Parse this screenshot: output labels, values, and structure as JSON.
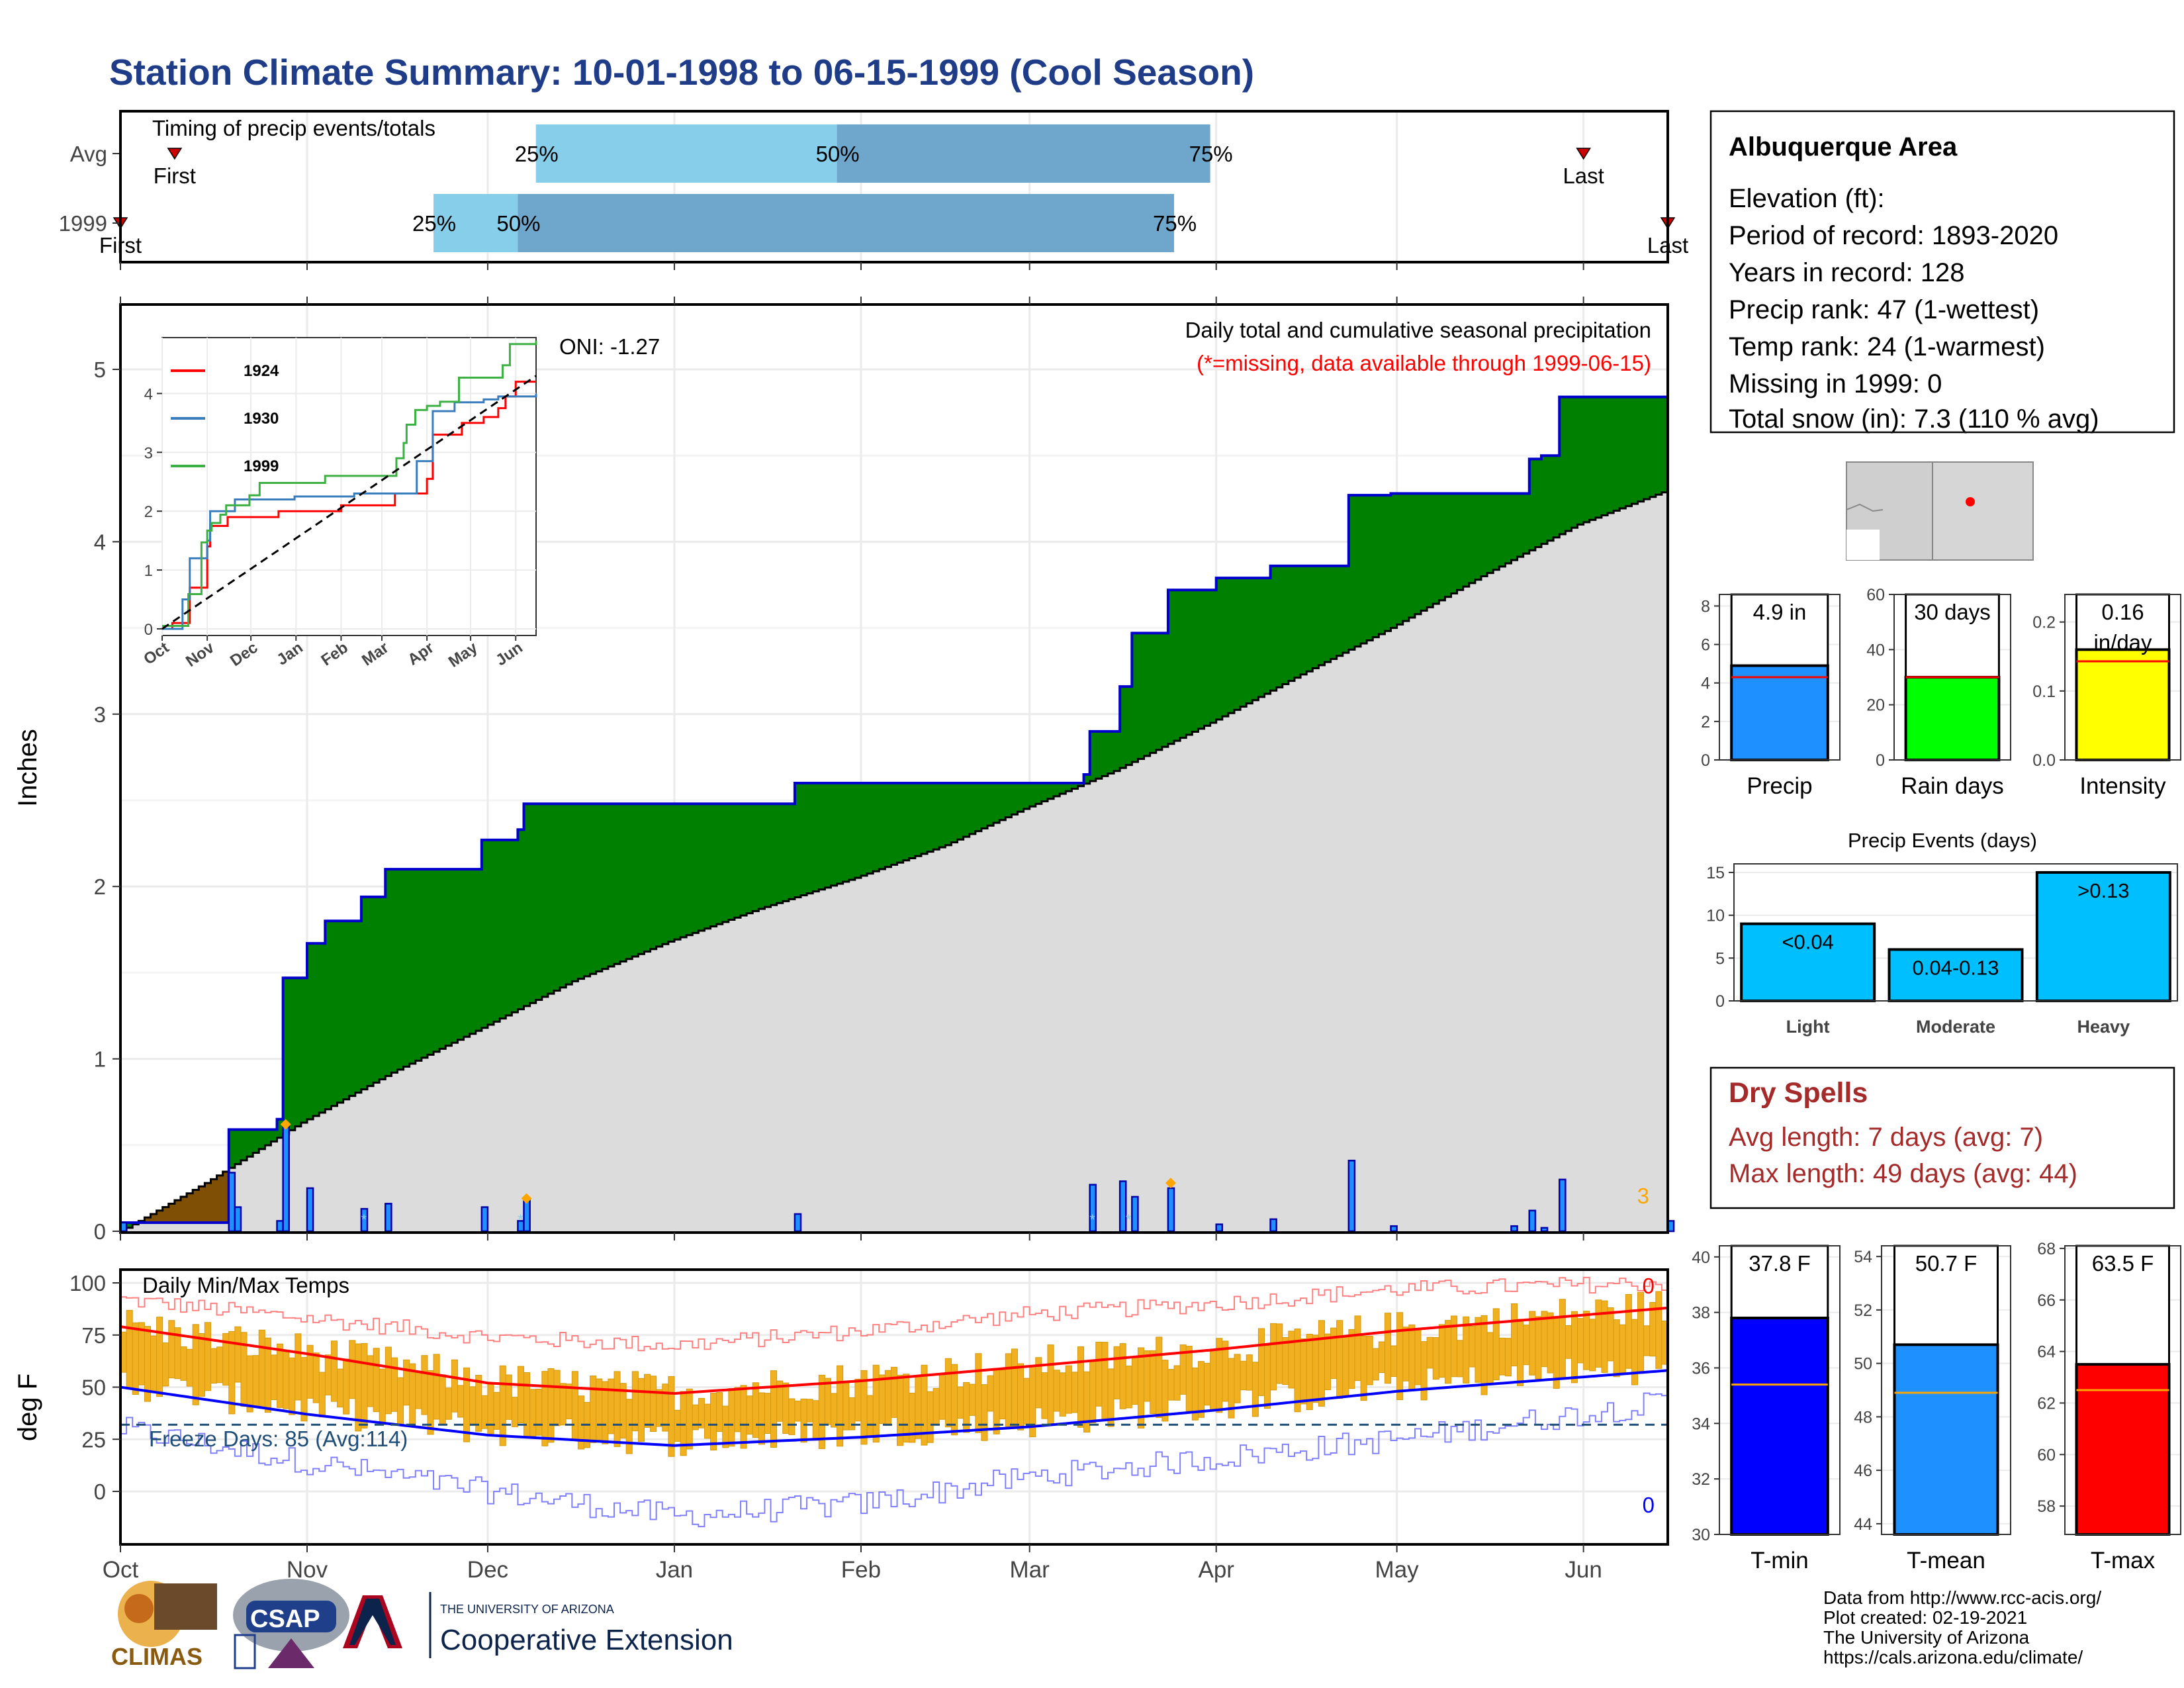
{
  "title": "Station Climate Summary: 10-01-1998 to 06-15-1999 (Cool Season)",
  "colors": {
    "title": "#1f3c88",
    "q1": "#87ceeb",
    "q2": "#6fa6cc",
    "green": "#008000",
    "brown": "#7f4f05",
    "gray_fill": "#dcdcdc",
    "blue_line": "#0000cc",
    "precip_bar": "#1e90ff",
    "rain_bar": "#00ff00",
    "intensity_bar": "#ffff00",
    "event_bar": "#00bfff",
    "dry_red": "#a52a2a",
    "tmin": "#0000ff",
    "tmean": "#1e90ff",
    "tmax": "#ff0000",
    "avg_line": "#ff0000",
    "temp_bar": "#f0b020"
  },
  "timing": {
    "title": "Timing of precip events/totals",
    "rows": [
      {
        "label": "Avg",
        "first": "First",
        "last": "Last",
        "p25": "25%",
        "p50": "50%",
        "p75": "75%"
      },
      {
        "label": "1999",
        "first": "First",
        "last": "Last",
        "p25": "25%",
        "p50": "50%",
        "p75": "75%"
      }
    ],
    "avg_dates": {
      "first": "1998-10-10",
      "p25": "1998-12-09",
      "p50": "1999-01-28",
      "p75": "1999-03-31",
      "last": "1999-06-01"
    },
    "y1999_dates": {
      "first": "1998-10-01",
      "p25": "1998-11-22",
      "p50": "1998-12-06",
      "p75": "1999-03-25",
      "last": "1999-06-15"
    }
  },
  "chart_data": [
    {
      "type": "area",
      "name": "cumulative_precip",
      "title": "Daily total and cumulative seasonal precipitation",
      "note": "(*=missing, data available through 1999-06-15)",
      "oni": "ONI: -1.27",
      "ylabel": "Inches",
      "ylim": [
        0,
        5.3
      ],
      "yticks": [
        "0",
        "1",
        "2",
        "3",
        "4",
        "5"
      ],
      "xticks": [
        "Oct",
        "Nov",
        "Dec",
        "Jan",
        "Feb",
        "Mar",
        "Apr",
        "May",
        "Jun"
      ],
      "corner_label": "3",
      "cumulative_1999": [
        [
          "1998-10-01",
          0.05
        ],
        [
          "1998-10-18",
          0.05
        ],
        [
          "1998-10-19",
          0.59
        ],
        [
          "1998-10-27",
          0.65
        ],
        [
          "1998-10-28",
          1.47
        ],
        [
          "1998-11-01",
          1.67
        ],
        [
          "1998-11-04",
          1.8
        ],
        [
          "1998-11-10",
          1.94
        ],
        [
          "1998-11-14",
          2.1
        ],
        [
          "1998-11-30",
          2.27
        ],
        [
          "1998-12-06",
          2.33
        ],
        [
          "1998-12-07",
          2.48
        ],
        [
          "1999-01-20",
          2.48
        ],
        [
          "1999-01-21",
          2.6
        ],
        [
          "1999-03-10",
          2.65
        ],
        [
          "1999-03-11",
          2.9
        ],
        [
          "1999-03-16",
          3.16
        ],
        [
          "1999-03-18",
          3.47
        ],
        [
          "1999-03-24",
          3.72
        ],
        [
          "1999-04-01",
          3.79
        ],
        [
          "1999-04-10",
          3.86
        ],
        [
          "1999-04-22",
          3.86
        ],
        [
          "1999-04-23",
          4.27
        ],
        [
          "1999-04-30",
          4.28
        ],
        [
          "1999-05-20",
          4.28
        ],
        [
          "1999-05-23",
          4.48
        ],
        [
          "1999-05-25",
          4.5
        ],
        [
          "1999-05-28",
          4.84
        ],
        [
          "1999-06-14",
          4.84
        ],
        [
          "1999-06-15",
          4.9
        ]
      ],
      "cumulative_avg": [
        [
          "1998-10-01",
          0.0
        ],
        [
          "1998-10-15",
          0.28
        ],
        [
          "1998-10-31",
          0.63
        ],
        [
          "1998-11-15",
          0.92
        ],
        [
          "1998-11-30",
          1.18
        ],
        [
          "1998-12-15",
          1.45
        ],
        [
          "1998-12-31",
          1.68
        ],
        [
          "1999-01-15",
          1.87
        ],
        [
          "1999-01-31",
          2.05
        ],
        [
          "1999-02-15",
          2.24
        ],
        [
          "1999-02-28",
          2.45
        ],
        [
          "1999-03-15",
          2.67
        ],
        [
          "1999-03-31",
          2.95
        ],
        [
          "1999-04-15",
          3.23
        ],
        [
          "1999-04-30",
          3.5
        ],
        [
          "1999-05-15",
          3.8
        ],
        [
          "1999-05-31",
          4.1
        ],
        [
          "1999-06-15",
          4.3
        ]
      ],
      "daily_precip": [
        [
          "1998-10-01",
          0.05
        ],
        [
          "1998-10-19",
          0.34
        ],
        [
          "1998-10-20",
          0.14
        ],
        [
          "1998-10-27",
          0.06
        ],
        [
          "1998-10-28",
          0.62
        ],
        [
          "1998-11-01",
          0.25
        ],
        [
          "1998-11-10",
          0.13
        ],
        [
          "1998-11-14",
          0.16
        ],
        [
          "1998-11-30",
          0.14
        ],
        [
          "1998-12-06",
          0.06
        ],
        [
          "1998-12-07",
          0.18
        ],
        [
          "1999-01-21",
          0.1
        ],
        [
          "1999-03-11",
          0.27
        ],
        [
          "1999-03-16",
          0.29
        ],
        [
          "1999-03-18",
          0.2
        ],
        [
          "1999-03-24",
          0.25
        ],
        [
          "1999-04-01",
          0.04
        ],
        [
          "1999-04-10",
          0.07
        ],
        [
          "1999-04-23",
          0.41
        ],
        [
          "1999-04-30",
          0.03
        ],
        [
          "1999-05-20",
          0.03
        ],
        [
          "1999-05-23",
          0.12
        ],
        [
          "1999-05-25",
          0.02
        ],
        [
          "1999-05-28",
          0.3
        ],
        [
          "1999-06-15",
          0.06
        ]
      ]
    },
    {
      "type": "line",
      "name": "inset_cumulative",
      "xticks": [
        "Oct",
        "Nov",
        "Dec",
        "Jan",
        "Feb",
        "Mar",
        "Apr",
        "May",
        "Jun"
      ],
      "yticks": [
        "0",
        "1",
        "2",
        "3",
        "4"
      ],
      "ylim": [
        0,
        4.95
      ],
      "series": [
        {
          "name": "1924",
          "color": "#ff0000",
          "points": [
            [
              "1998-10-01",
              0
            ],
            [
              "1998-10-08",
              0.1
            ],
            [
              "1998-10-20",
              0.7
            ],
            [
              "1998-11-01",
              1.4
            ],
            [
              "1998-11-03",
              1.75
            ],
            [
              "1998-11-15",
              1.9
            ],
            [
              "1998-12-20",
              2.0
            ],
            [
              "1999-02-01",
              2.1
            ],
            [
              "1999-03-10",
              2.3
            ],
            [
              "1999-04-01",
              2.55
            ],
            [
              "1999-04-05",
              3.3
            ],
            [
              "1999-04-25",
              3.5
            ],
            [
              "1999-05-10",
              3.6
            ],
            [
              "1999-05-20",
              3.75
            ],
            [
              "1999-05-25",
              3.95
            ],
            [
              "1999-06-01",
              4.2
            ],
            [
              "1999-06-15",
              4.2
            ]
          ]
        },
        {
          "name": "1930",
          "color": "#3a7dbd",
          "points": [
            [
              "1998-10-01",
              0
            ],
            [
              "1998-10-15",
              0.5
            ],
            [
              "1998-10-20",
              1.2
            ],
            [
              "1998-11-01",
              1.5
            ],
            [
              "1998-11-03",
              2.0
            ],
            [
              "1998-11-20",
              2.2
            ],
            [
              "1998-12-31",
              2.25
            ],
            [
              "1999-02-10",
              2.3
            ],
            [
              "1999-03-25",
              2.85
            ],
            [
              "1999-04-05",
              3.7
            ],
            [
              "1999-04-20",
              3.85
            ],
            [
              "1999-05-10",
              3.9
            ],
            [
              "1999-05-20",
              3.95
            ],
            [
              "1999-06-15",
              4.0
            ]
          ]
        },
        {
          "name": "1999",
          "color": "#3cb043",
          "points": [
            [
              "1998-10-01",
              0.05
            ],
            [
              "1998-10-19",
              0.59
            ],
            [
              "1998-10-28",
              1.47
            ],
            [
              "1998-11-01",
              1.67
            ],
            [
              "1998-11-04",
              1.8
            ],
            [
              "1998-11-10",
              1.94
            ],
            [
              "1998-11-14",
              2.1
            ],
            [
              "1998-11-30",
              2.27
            ],
            [
              "1998-12-07",
              2.48
            ],
            [
              "1999-01-21",
              2.6
            ],
            [
              "1999-03-11",
              2.9
            ],
            [
              "1999-03-16",
              3.16
            ],
            [
              "1999-03-18",
              3.47
            ],
            [
              "1999-03-24",
              3.72
            ],
            [
              "1999-04-01",
              3.79
            ],
            [
              "1999-04-10",
              3.86
            ],
            [
              "1999-04-23",
              4.27
            ],
            [
              "1999-05-23",
              4.48
            ],
            [
              "1999-05-28",
              4.84
            ],
            [
              "1999-06-15",
              4.9
            ]
          ]
        },
        {
          "name": "avg",
          "color": "#000000",
          "points": [
            [
              "1998-10-01",
              0
            ],
            [
              "1999-06-15",
              4.3
            ]
          ]
        }
      ]
    },
    {
      "type": "line",
      "name": "daily_temps",
      "title": "Daily Min/Max Temps",
      "ylabel": "deg F",
      "ylim": [
        -22,
        108
      ],
      "yticks": [
        "0",
        "25",
        "50",
        "75",
        "100"
      ],
      "xticks": [
        "Oct",
        "Nov",
        "Dec",
        "Jan",
        "Feb",
        "Mar",
        "Apr",
        "May",
        "Jun"
      ],
      "freeze_label": "Freeze Days: 85 (Avg:114)",
      "freeze_line": 32,
      "max_label": "0",
      "min_label": "0",
      "avg_max": [
        [
          "1998-10-01",
          79
        ],
        [
          "1998-11-01",
          66
        ],
        [
          "1998-12-01",
          52
        ],
        [
          "1999-01-01",
          47
        ],
        [
          "1999-02-01",
          53
        ],
        [
          "1999-03-01",
          60
        ],
        [
          "1999-04-01",
          68
        ],
        [
          "1999-05-01",
          77
        ],
        [
          "1999-06-15",
          88
        ]
      ],
      "avg_min": [
        [
          "1998-10-01",
          50
        ],
        [
          "1998-11-01",
          37
        ],
        [
          "1998-12-01",
          27
        ],
        [
          "1999-01-01",
          22
        ],
        [
          "1999-02-01",
          26
        ],
        [
          "1999-03-01",
          31
        ],
        [
          "1999-04-01",
          39
        ],
        [
          "1999-05-01",
          48
        ],
        [
          "1999-06-15",
          58
        ]
      ],
      "record_max": [
        [
          "1998-10-01",
          92
        ],
        [
          "1998-11-01",
          83
        ],
        [
          "1998-12-01",
          74
        ],
        [
          "1999-01-01",
          70
        ],
        [
          "1999-02-01",
          77
        ],
        [
          "1999-03-01",
          85
        ],
        [
          "1999-04-01",
          90
        ],
        [
          "1999-05-01",
          97
        ],
        [
          "1999-06-15",
          100
        ]
      ],
      "record_min": [
        [
          "1998-10-01",
          30
        ],
        [
          "1998-11-01",
          14
        ],
        [
          "1998-12-01",
          0
        ],
        [
          "1999-01-01",
          -12
        ],
        [
          "1999-02-01",
          -6
        ],
        [
          "1999-03-01",
          7
        ],
        [
          "1999-04-01",
          16
        ],
        [
          "1999-05-01",
          25
        ],
        [
          "1999-06-15",
          43
        ]
      ]
    },
    {
      "type": "bar",
      "name": "precip_total",
      "categories": [
        "Precip"
      ],
      "values": [
        4.9
      ],
      "avg": 4.3,
      "label": "4.9 in",
      "ylim": [
        0,
        8.6
      ],
      "yticks": [
        "0",
        "2",
        "4",
        "6",
        "8"
      ]
    },
    {
      "type": "bar",
      "name": "rain_days",
      "categories": [
        "Rain days"
      ],
      "values": [
        30
      ],
      "avg": 30,
      "label": "30 days",
      "ylim": [
        0,
        60
      ],
      "yticks": [
        "0",
        "20",
        "40",
        "60"
      ]
    },
    {
      "type": "bar",
      "name": "intensity",
      "categories": [
        "Intensity"
      ],
      "values": [
        0.16
      ],
      "avg": 0.143,
      "label_line1": "0.16",
      "label_line2": "in/day",
      "ylim": [
        0,
        0.24
      ],
      "yticks": [
        "0.0",
        "0.1",
        "0.2"
      ]
    },
    {
      "type": "bar",
      "name": "precip_events",
      "title": "Precip Events (days)",
      "categories": [
        "Light",
        "Moderate",
        "Heavy"
      ],
      "values": [
        9,
        6,
        15
      ],
      "labels": [
        "<0.04",
        "0.04-0.13",
        ">0.13"
      ],
      "ylim": [
        0,
        16
      ],
      "yticks": [
        "0",
        "5",
        "10",
        "15"
      ]
    },
    {
      "type": "bar",
      "name": "tmin",
      "categories": [
        "T-min"
      ],
      "values": [
        37.8
      ],
      "avg": 35.4,
      "label": "37.8 F",
      "ylim": [
        30,
        40.4
      ],
      "yticks": [
        "30",
        "32",
        "34",
        "36",
        "38",
        "40"
      ]
    },
    {
      "type": "bar",
      "name": "tmean",
      "categories": [
        "T-mean"
      ],
      "values": [
        50.7
      ],
      "avg": 48.9,
      "label": "50.7 F",
      "ylim": [
        43.6,
        54.4
      ],
      "yticks": [
        "44",
        "46",
        "48",
        "50",
        "52",
        "54"
      ]
    },
    {
      "type": "bar",
      "name": "tmax",
      "categories": [
        "T-max"
      ],
      "values": [
        63.5
      ],
      "avg": 62.5,
      "label": "63.5 F",
      "ylim": [
        56.9,
        68.1
      ],
      "yticks": [
        "58",
        "60",
        "62",
        "64",
        "66",
        "68"
      ]
    }
  ],
  "info": {
    "station": "Albuquerque Area",
    "lines": [
      "Elevation (ft):",
      "Period of record: 1893-2020",
      "Years in record: 128",
      "Precip rank: 47 (1-wettest)",
      "Temp rank: 24 (1-warmest)",
      "Missing in 1999: 0",
      "Total snow (in): 7.3 (110 % avg)"
    ]
  },
  "dry_spells": {
    "title": "Dry Spells",
    "avg": "Avg length: 7 days (avg: 7)",
    "max": "Max length: 49 days (avg: 44)"
  },
  "credits": [
    "Data from http://www.rcc-acis.org/",
    "Plot created: 02-19-2021",
    "The University of Arizona",
    "https://cals.arizona.edu/climate/"
  ],
  "logos": {
    "climas": "CLIMAS",
    "csap": "CSAP",
    "ua_small": "THE UNIVERSITY OF ARIZONA",
    "ua_big": "Cooperative Extension"
  }
}
